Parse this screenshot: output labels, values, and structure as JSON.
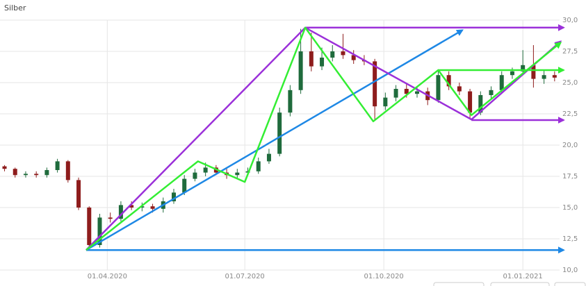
{
  "chart_data": {
    "type": "candlestick",
    "title": "Silber",
    "x": [
      "24.01.2020",
      "31.01.2020",
      "07.02.2020",
      "14.02.2020",
      "21.02.2020",
      "28.02.2020",
      "06.03.2020",
      "13.03.2020",
      "20.03.2020",
      "27.03.2020",
      "03.04.2020",
      "10.04.2020",
      "17.04.2020",
      "24.04.2020",
      "01.05.2020",
      "08.05.2020",
      "15.05.2020",
      "22.05.2020",
      "29.05.2020",
      "05.06.2020",
      "12.06.2020",
      "19.06.2020",
      "26.06.2020",
      "03.07.2020",
      "10.07.2020",
      "17.07.2020",
      "24.07.2020",
      "31.07.2020",
      "07.08.2020",
      "14.08.2020",
      "21.08.2020",
      "28.08.2020",
      "04.09.2020",
      "11.09.2020",
      "18.09.2020",
      "25.09.2020",
      "02.10.2020",
      "09.10.2020",
      "16.10.2020",
      "23.10.2020",
      "30.10.2020",
      "06.11.2020",
      "13.11.2020",
      "20.11.2020",
      "27.11.2020",
      "04.12.2020",
      "11.12.2020",
      "18.12.2020",
      "25.12.2020",
      "01.01.2021",
      "08.01.2021",
      "15.01.2021",
      "22.01.2021"
    ],
    "open": [
      18.3,
      18.1,
      17.6,
      17.7,
      17.6,
      18.0,
      18.7,
      17.2,
      15.0,
      12.0,
      14.2,
      14.1,
      15.2,
      15.0,
      15.1,
      14.9,
      15.5,
      16.2,
      17.3,
      17.8,
      18.2,
      17.8,
      17.6,
      17.8,
      17.9,
      18.7,
      19.3,
      22.6,
      24.4,
      27.5,
      26.3,
      27.0,
      27.5,
      27.2,
      26.8,
      26.7,
      23.1,
      23.8,
      24.5,
      24.1,
      24.3,
      23.6,
      25.6,
      24.7,
      24.3,
      22.6,
      24.0,
      24.4,
      25.6,
      25.9,
      26.4,
      25.3,
      25.6
    ],
    "high": [
      18.4,
      18.2,
      17.9,
      17.9,
      18.2,
      18.9,
      18.8,
      17.4,
      15.1,
      14.5,
      14.6,
      15.5,
      15.5,
      15.4,
      15.3,
      15.8,
      16.5,
      17.6,
      18.1,
      18.6,
      18.4,
      18.1,
      18.1,
      18.2,
      19.0,
      19.7,
      23.0,
      24.8,
      29.3,
      29.0,
      27.8,
      28.0,
      28.9,
      27.6,
      27.2,
      26.9,
      24.2,
      24.8,
      24.9,
      24.6,
      24.6,
      26.0,
      25.9,
      25.0,
      24.5,
      24.3,
      24.7,
      25.9,
      26.2,
      27.6,
      28.0,
      26.0,
      25.9
    ],
    "low": [
      17.9,
      17.4,
      17.4,
      17.4,
      17.4,
      17.8,
      17.0,
      14.8,
      11.7,
      11.8,
      13.8,
      13.9,
      14.8,
      14.7,
      14.6,
      14.6,
      15.3,
      16.0,
      17.1,
      17.5,
      17.6,
      17.3,
      17.3,
      17.6,
      17.7,
      18.5,
      19.1,
      22.3,
      24.1,
      25.9,
      26.0,
      26.7,
      26.9,
      26.5,
      26.4,
      22.0,
      22.8,
      23.5,
      23.8,
      23.8,
      23.2,
      23.4,
      24.4,
      24.0,
      22.1,
      22.4,
      23.7,
      24.1,
      25.3,
      25.6,
      24.6,
      24.9,
      25.1
    ],
    "close": [
      18.1,
      17.6,
      17.7,
      17.6,
      18.0,
      18.7,
      17.2,
      15.0,
      12.0,
      14.2,
      14.1,
      15.2,
      15.0,
      15.1,
      14.9,
      15.5,
      16.2,
      17.3,
      17.8,
      18.2,
      17.8,
      17.6,
      17.8,
      17.9,
      18.7,
      19.3,
      22.6,
      24.4,
      27.5,
      26.3,
      27.0,
      27.5,
      27.2,
      26.8,
      26.7,
      23.1,
      23.8,
      24.5,
      24.1,
      24.3,
      23.6,
      25.6,
      24.7,
      24.3,
      22.6,
      24.0,
      24.4,
      25.6,
      25.9,
      26.4,
      25.3,
      25.6,
      25.4
    ],
    "up_color": "#1f6b3c",
    "down_color": "#8e1c1c",
    "xlim": [
      "21.01.2020",
      "23.01.2021"
    ],
    "xticks": [
      "01.04.2020",
      "01.07.2020",
      "01.10.2020",
      "01.01.2021"
    ],
    "ylim": [
      10,
      30
    ],
    "yticks": [
      {
        "value": 10,
        "label": "10,0"
      },
      {
        "value": 12.5,
        "label": "12,5"
      },
      {
        "value": 15,
        "label": "15,0"
      },
      {
        "value": 17.5,
        "label": "17,5"
      },
      {
        "value": 20,
        "label": "20,0"
      },
      {
        "value": 22.5,
        "label": "22,5"
      },
      {
        "value": 25,
        "label": "25,0"
      },
      {
        "value": 27.5,
        "label": "27,5"
      },
      {
        "value": 30,
        "label": "30,0"
      }
    ],
    "grid": true,
    "lines": [
      {
        "color": "#1e88e5",
        "arrow": true,
        "x": [
          "18.03.2020",
          "28.01.2021"
        ],
        "values": [
          11.6,
          11.6
        ]
      },
      {
        "color": "#1e88e5",
        "arrow": true,
        "x": [
          "18.03.2020",
          "22.11.2020"
        ],
        "values": [
          11.6,
          29.2
        ]
      },
      {
        "color": "#9b30d9",
        "arrow": true,
        "x": [
          "18.03.2020",
          "10.08.2020",
          "28.11.2020",
          "26.01.2021"
        ],
        "values": [
          11.6,
          29.4,
          22.05,
          28.3
        ]
      },
      {
        "color": "#9b30d9",
        "arrow": true,
        "x": [
          "10.08.2020",
          "28.01.2021"
        ],
        "values": [
          29.4,
          29.4
        ]
      },
      {
        "color": "#9b30d9",
        "arrow": true,
        "x": [
          "28.11.2020",
          "28.01.2021"
        ],
        "values": [
          22.0,
          22.0
        ]
      },
      {
        "color": "#33ee33",
        "arrow": true,
        "x": [
          "18.03.2020",
          "31.05.2020",
          "01.07.2020",
          "10.08.2020",
          "24.09.2020",
          "06.11.2020",
          "28.11.2020",
          "26.01.2021"
        ],
        "values": [
          11.6,
          18.7,
          17.05,
          29.4,
          21.9,
          26.0,
          22.4,
          28.2
        ]
      },
      {
        "color": "#33ee33",
        "arrow": true,
        "x": [
          "06.11.2020",
          "28.01.2021"
        ],
        "values": [
          26.0,
          26.0
        ]
      }
    ]
  }
}
